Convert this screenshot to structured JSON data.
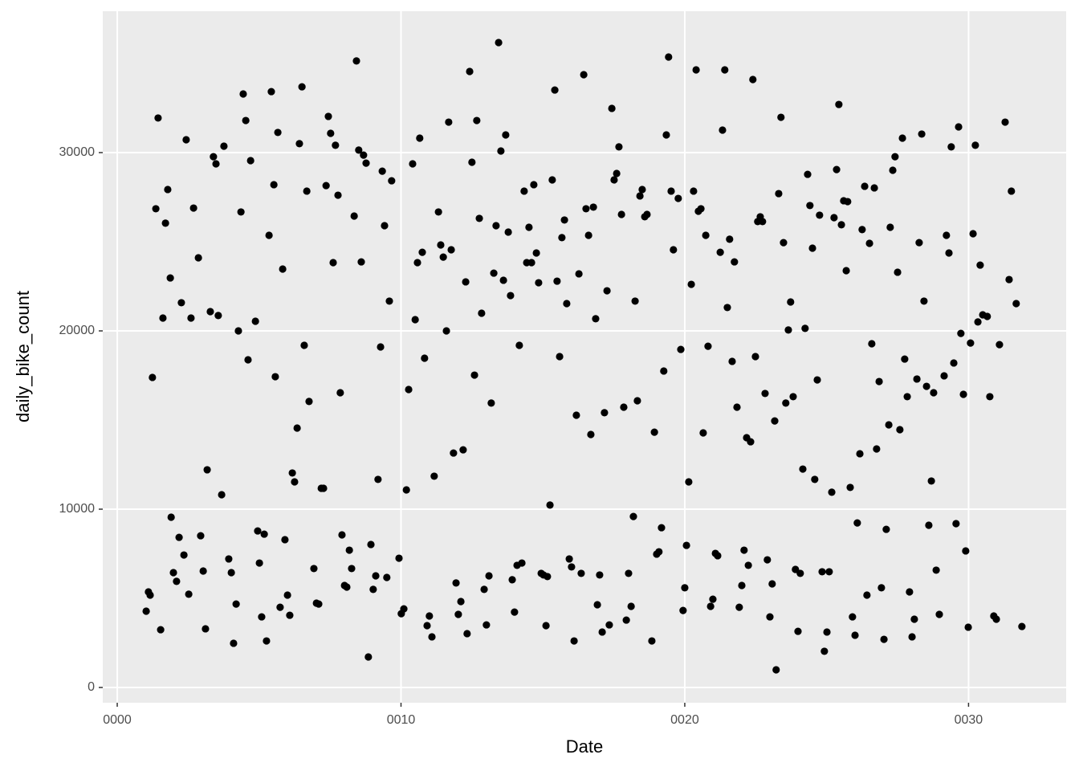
{
  "chart_data": {
    "type": "scatter",
    "x_label": "Date",
    "y_label": "daily_bike_count",
    "color": "#000000",
    "grid": true,
    "xlim": [
      -0.51,
      33.44
    ],
    "ylim": [
      -856,
      37928
    ],
    "xticks": [
      {
        "value": 0,
        "label": "0000"
      },
      {
        "value": 10,
        "label": "0010"
      },
      {
        "value": 20,
        "label": "0020"
      },
      {
        "value": 30,
        "label": "0030"
      }
    ],
    "yticks": [
      0,
      10000,
      20000,
      30000
    ],
    "x": [
      1.02,
      1.1,
      1.16,
      1.24,
      1.36,
      1.44,
      1.53,
      1.61,
      1.7,
      1.78,
      1.87,
      1.9,
      1.98,
      2.09,
      2.18,
      2.26,
      2.35,
      2.43,
      2.52,
      2.6,
      2.69,
      2.86,
      2.94,
      3.03,
      3.11,
      3.17,
      3.28,
      3.39,
      3.48,
      3.56,
      3.68,
      3.76,
      3.93,
      4.02,
      4.1,
      4.19,
      4.27,
      4.36,
      4.44,
      4.53,
      4.61,
      4.7,
      4.87,
      4.95,
      5.01,
      5.09,
      5.18,
      5.26,
      5.35,
      5.43,
      5.52,
      5.57,
      5.66,
      5.74,
      5.83,
      5.91,
      6.0,
      6.08,
      6.17,
      6.25,
      6.34,
      6.42,
      6.51,
      6.59,
      6.68,
      6.76,
      6.93,
      7.02,
      7.1,
      7.19,
      7.27,
      7.36,
      7.44,
      7.52,
      7.61,
      7.69,
      7.78,
      7.86,
      7.92,
      8.01,
      8.09,
      8.18,
      8.26,
      8.35,
      8.43,
      8.51,
      8.6,
      8.68,
      8.77,
      8.85,
      8.94,
      9.02,
      9.11,
      9.19,
      9.28,
      9.34,
      9.42,
      9.5,
      9.59,
      9.67,
      9.93,
      10.01,
      10.1,
      10.19,
      10.27,
      10.41,
      10.5,
      10.58,
      10.66,
      10.75,
      10.83,
      10.92,
      11.0,
      11.09,
      11.17,
      11.32,
      11.4,
      11.49,
      11.6,
      11.68,
      11.77,
      11.85,
      11.94,
      12.02,
      12.11,
      12.19,
      12.28,
      12.33,
      12.42,
      12.5,
      12.59,
      12.67,
      12.76,
      12.84,
      12.93,
      13.01,
      13.1,
      13.18,
      13.27,
      13.35,
      13.44,
      13.52,
      13.61,
      13.69,
      13.78,
      13.86,
      13.92,
      14.0,
      14.09,
      14.17,
      14.26,
      14.34,
      14.43,
      14.51,
      14.6,
      14.68,
      14.77,
      14.85,
      14.94,
      15.02,
      15.11,
      15.16,
      15.25,
      15.33,
      15.42,
      15.5,
      15.59,
      15.67,
      15.76,
      15.84,
      15.93,
      16.01,
      16.1,
      16.18,
      16.27,
      16.35,
      16.44,
      16.52,
      16.61,
      16.69,
      16.78,
      16.86,
      16.92,
      17.0,
      17.09,
      17.17,
      17.26,
      17.34,
      17.43,
      17.51,
      17.6,
      17.68,
      17.77,
      17.85,
      17.94,
      18.02,
      18.11,
      18.19,
      18.25,
      18.33,
      18.42,
      18.5,
      18.59,
      18.67,
      18.84,
      18.93,
      19.01,
      19.09,
      19.18,
      19.26,
      19.35,
      19.43,
      19.52,
      19.6,
      19.77,
      19.86,
      19.94,
      20.0,
      20.06,
      20.14,
      20.23,
      20.31,
      20.4,
      20.48,
      20.57,
      20.65,
      20.74,
      20.82,
      20.91,
      20.99,
      21.08,
      21.16,
      21.25,
      21.33,
      21.41,
      21.5,
      21.58,
      21.67,
      21.75,
      21.84,
      21.92,
      22.01,
      22.09,
      22.18,
      22.24,
      22.32,
      22.4,
      22.49,
      22.57,
      22.66,
      22.74,
      22.83,
      22.91,
      23.0,
      23.08,
      23.17,
      23.22,
      23.31,
      23.39,
      23.48,
      23.56,
      23.65,
      23.73,
      23.82,
      23.9,
      23.99,
      24.07,
      24.16,
      24.24,
      24.33,
      24.41,
      24.5,
      24.58,
      24.67,
      24.75,
      24.84,
      24.92,
      25.01,
      25.09,
      25.18,
      25.26,
      25.35,
      25.43,
      25.52,
      25.6,
      25.69,
      25.74,
      25.83,
      25.91,
      26.0,
      26.08,
      26.17,
      26.25,
      26.34,
      26.42,
      26.51,
      26.59,
      26.68,
      26.76,
      26.85,
      26.93,
      27.02,
      27.1,
      27.19,
      27.24,
      27.33,
      27.41,
      27.5,
      27.58,
      27.67,
      27.75,
      27.84,
      27.92,
      28.01,
      28.09,
      28.18,
      28.26,
      28.35,
      28.43,
      28.52,
      28.6,
      28.69,
      28.77,
      28.86,
      28.97,
      29.14,
      29.22,
      29.31,
      29.39,
      29.48,
      29.56,
      29.65,
      29.73,
      29.82,
      29.9,
      29.99,
      30.07,
      30.16,
      30.24,
      30.33,
      30.41,
      30.5,
      30.66,
      30.75,
      30.89,
      30.98,
      31.09,
      31.29,
      31.43,
      31.51,
      31.68,
      31.88
    ],
    "y": [
      4280,
      5360,
      5180,
      17390,
      26850,
      31940,
      3240,
      20720,
      26040,
      27930,
      22970,
      9550,
      6440,
      5950,
      8420,
      21580,
      7430,
      30720,
      5230,
      20720,
      26890,
      24100,
      8510,
      6530,
      3290,
      12210,
      21080,
      29770,
      29370,
      20860,
      10810,
      30360,
      7210,
      6440,
      2480,
      4680,
      20000,
      26670,
      33290,
      31800,
      18380,
      29550,
      20540,
      8780,
      6980,
      3960,
      8600,
      2610,
      25360,
      33420,
      28200,
      17430,
      31130,
      4500,
      23470,
      8290,
      5180,
      4050,
      12030,
      11530,
      14550,
      30500,
      33690,
      19190,
      27840,
      16040,
      6670,
      4730,
      4680,
      11170,
      11170,
      28150,
      32030,
      31080,
      23830,
      30410,
      27610,
      16530,
      8560,
      5720,
      5630,
      7700,
      6670,
      26440,
      35140,
      30140,
      23870,
      29860,
      29410,
      1710,
      8020,
      5500,
      6260,
      11670,
      19100,
      28960,
      25900,
      6170,
      21670,
      28420,
      7250,
      4140,
      4410,
      11080,
      16710,
      29370,
      20630,
      23830,
      30810,
      24410,
      18470,
      3470,
      4010,
      2840,
      11850,
      26670,
      24820,
      24140,
      20000,
      31710,
      24550,
      13150,
      5860,
      4100,
      4820,
      13330,
      22750,
      3020,
      34550,
      29460,
      17520,
      31800,
      26310,
      20990,
      5500,
      3510,
      6260,
      15950,
      23240,
      25900,
      36170,
      30090,
      22840,
      30990,
      25540,
      21980,
      6040,
      4230,
      6850,
      19190,
      6980,
      27840,
      23830,
      25810,
      23830,
      28200,
      24370,
      22700,
      6400,
      6310,
      3470,
      6220,
      10230,
      28470,
      33510,
      22790,
      18560,
      25230,
      26220,
      21530,
      7210,
      6760,
      2610,
      15270,
      23200,
      6400,
      34370,
      26850,
      25360,
      14190,
      26940,
      20680,
      4640,
      6310,
      3110,
      15410,
      22250,
      3510,
      32480,
      28470,
      28830,
      30320,
      26530,
      15720,
      3780,
      6400,
      4550,
      9590,
      21670,
      16080,
      27570,
      27930,
      26400,
      26530,
      2610,
      14320,
      7480,
      7610,
      8960,
      17750,
      30990,
      35360,
      27840,
      24550,
      27430,
      18960,
      4320,
      5590,
      7970,
      11530,
      22610,
      27840,
      34640,
      26710,
      26850,
      14280,
      25360,
      19140,
      4550,
      4950,
      7520,
      7390,
      24410,
      31260,
      34640,
      21310,
      25140,
      18290,
      23870,
      15720,
      4500,
      5720,
      7700,
      14010,
      6850,
      13780,
      34100,
      18560,
      26130,
      26400,
      26130,
      16490,
      7160,
      3960,
      5810,
      14950,
      990,
      27700,
      31980,
      24950,
      15950,
      20050,
      21620,
      16310,
      6620,
      3150,
      6400,
      12250,
      20140,
      28780,
      27030,
      24640,
      11670,
      17250,
      26490,
      6490,
      2030,
      3110,
      6490,
      10950,
      26350,
      29050,
      32700,
      25950,
      27300,
      23380,
      27250,
      11220,
      3960,
      2930,
      9230,
      13110,
      25680,
      28110,
      5180,
      24910,
      19280,
      28020,
      13380,
      17160,
      5590,
      2700,
      8870,
      14730,
      25810,
      29010,
      29770,
      23290,
      14460,
      30810,
      18420,
      16310,
      5360,
      2840,
      3830,
      17300,
      24950,
      31040,
      21670,
      16890,
      9100,
      11580,
      16530,
      6580,
      4100,
      17480,
      25360,
      24370,
      30320,
      18200,
      9190,
      31440,
      19860,
      16440,
      7660,
      3380,
      19320,
      25450,
      30410,
      20500,
      23690,
      20900,
      20810,
      16310,
      4010,
      3830,
      19230,
      31710,
      22880,
      27840,
      21530,
      3420
    ]
  }
}
